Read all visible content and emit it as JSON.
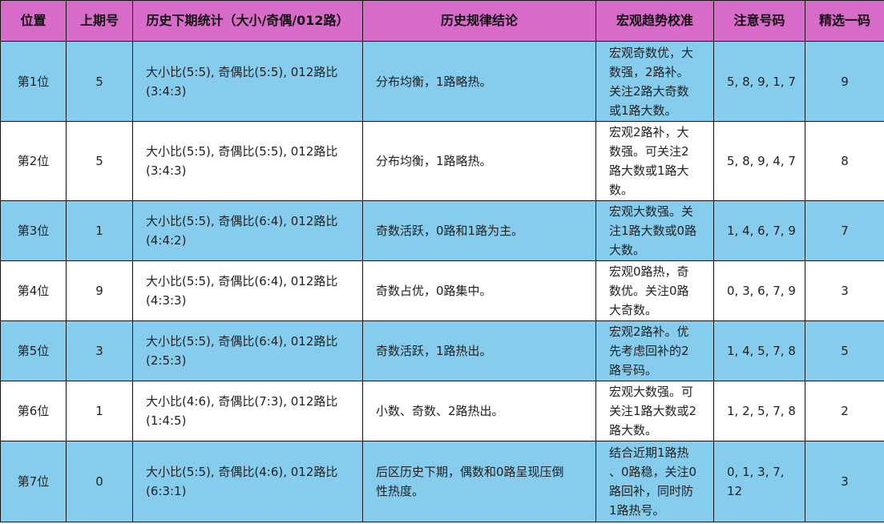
{
  "headers": [
    "位置",
    "上期号",
    "历史下期统计（大小/奇偶/012路）",
    "历史规律结论",
    "宏观趋势校准",
    "注意号码",
    "精选一码"
  ],
  "rows": [
    {
      "pos": "第1位",
      "last": "5",
      "stats": "大小比(5:5), 奇偶比(5:5), 012路比\n(3:4:3)",
      "conclusion": "分布均衡，1路略热。",
      "macro": "宏观奇数优，大\n数强，2路补。\n关注2路大奇数\n或1路大数。",
      "watch": "5, 8, 9, 1, 7",
      "pick": "9"
    },
    {
      "pos": "第2位",
      "last": "5",
      "stats": "大小比(5:5), 奇偶比(5:5), 012路比\n(3:4:3)",
      "conclusion": "分布均衡，1路略热。",
      "macro": "宏观2路补，大\n数强。可关注2\n路大数或1路大\n数。",
      "watch": "5, 8, 9, 4, 7",
      "pick": "8"
    },
    {
      "pos": "第3位",
      "last": "1",
      "stats": "大小比(5:5), 奇偶比(6:4), 012路比\n(4:4:2)",
      "conclusion": "奇数活跃，0路和1路为主。",
      "macro": "宏观大数强。关\n注1路大数或0路\n大数。",
      "watch": "1, 4, 6, 7, 9",
      "pick": "7"
    },
    {
      "pos": "第4位",
      "last": "9",
      "stats": "大小比(5:5), 奇偶比(6:4), 012路比\n(4:3:3)",
      "conclusion": "奇数占优，0路集中。",
      "macro": "宏观0路热，奇\n数优。关注0路\n大奇数。",
      "watch": "0, 3, 6, 7, 9",
      "pick": "3"
    },
    {
      "pos": "第5位",
      "last": "3",
      "stats": "大小比(5:5), 奇偶比(6:4), 012路比\n(2:5:3)",
      "conclusion": "奇数活跃，1路热出。",
      "macro": "宏观2路补。优\n先考虑回补的2\n路号码。",
      "watch": "1, 4, 5, 7, 8",
      "pick": "5"
    },
    {
      "pos": "第6位",
      "last": "1",
      "stats": "大小比(4:6), 奇偶比(7:3), 012路比\n(1:4:5)",
      "conclusion": "小数、奇数、2路热出。",
      "macro": "宏观大数强。可\n关注1路大数或2\n路大数。",
      "watch": "1, 2, 5, 7, 8",
      "pick": "2"
    },
    {
      "pos": "第7位",
      "last": "0",
      "stats": "大小比(5:5), 奇偶比(4:6), 012路比\n(6:3:1)",
      "conclusion": "后区历史下期，偶数和0路呈现压倒\n性热度。",
      "macro": "结合近期1路热\n、0路稳，关注0\n路回补，同时防\n1路热号。",
      "watch": "0, 1, 3, 7,\n12",
      "pick": "3"
    }
  ]
}
